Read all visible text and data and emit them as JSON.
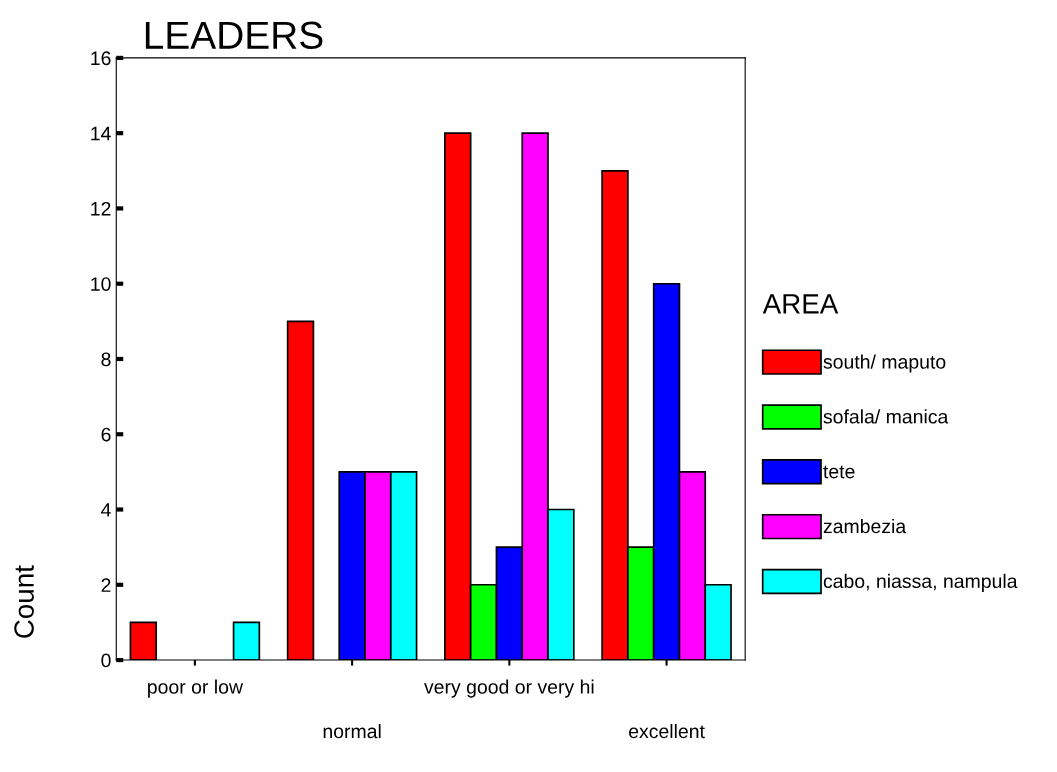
{
  "chart_data": {
    "type": "bar",
    "title": "LEADERS",
    "ylabel": "Count",
    "legend_title": "AREA",
    "categories": [
      "poor or low",
      "normal",
      "very good or very hi",
      "excellent"
    ],
    "series": [
      {
        "name": "south/ maputo",
        "color": "#ff0000",
        "values": [
          1,
          9,
          14,
          13
        ]
      },
      {
        "name": "sofala/ manica",
        "color": "#00ff00",
        "values": [
          0,
          0,
          2,
          3
        ]
      },
      {
        "name": "tete",
        "color": "#0000ff",
        "values": [
          0,
          5,
          3,
          10
        ]
      },
      {
        "name": "zambezia",
        "color": "#ff00ff",
        "values": [
          0,
          5,
          14,
          5
        ]
      },
      {
        "name": "cabo, niassa, nampula",
        "color": "#00ffff",
        "values": [
          1,
          5,
          4,
          2
        ]
      }
    ],
    "ylim": [
      0,
      16
    ],
    "yticks": [
      0,
      2,
      4,
      6,
      8,
      10,
      12,
      14,
      16
    ],
    "grid": false,
    "legend": "right"
  }
}
